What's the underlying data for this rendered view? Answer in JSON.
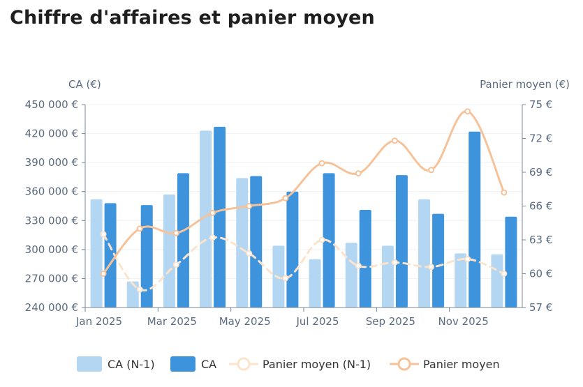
{
  "chart_data": {
    "type": "bar",
    "title": "Chiffre d'affaires et panier moyen",
    "ylabel": "CA (€)",
    "y2label": "Panier moyen (€)",
    "ylim": [
      240000,
      450000
    ],
    "y2lim": [
      57,
      75
    ],
    "y_ticks": [
      "240 000 €",
      "270 000 €",
      "300 000 €",
      "330 000 €",
      "360 000 €",
      "390 000 €",
      "420 000 €",
      "450 000 €"
    ],
    "y2_ticks": [
      "57 €",
      "60 €",
      "63 €",
      "66 €",
      "69 €",
      "72 €",
      "75 €"
    ],
    "x_tick_labels": [
      {
        "index": 0,
        "label": "Jan 2025"
      },
      {
        "index": 2,
        "label": "Mar 2025"
      },
      {
        "index": 4,
        "label": "May 2025"
      },
      {
        "index": 6,
        "label": "Jul 2025"
      },
      {
        "index": 8,
        "label": "Sep 2025"
      },
      {
        "index": 10,
        "label": "Nov 2025"
      }
    ],
    "categories": [
      "Jan 2025",
      "Feb 2025",
      "Mar 2025",
      "Apr 2025",
      "May 2025",
      "Jun 2025",
      "Jul 2025",
      "Aug 2025",
      "Sep 2025",
      "Oct 2025",
      "Nov 2025",
      "Dec 2025"
    ],
    "series": [
      {
        "name": "CA (N-1)",
        "kind": "bar",
        "axis": "left",
        "color": "#b3d6f2",
        "values": [
          352000,
          267000,
          357000,
          423000,
          374000,
          304000,
          290000,
          307000,
          304000,
          352000,
          296000,
          295000
        ]
      },
      {
        "name": "CA",
        "kind": "bar",
        "axis": "left",
        "color": "#3d94dd",
        "values": [
          348000,
          346000,
          379000,
          427000,
          376000,
          360000,
          379000,
          341000,
          377000,
          337000,
          422000,
          334000
        ]
      },
      {
        "name": "Panier moyen (N-1)",
        "kind": "line",
        "axis": "right",
        "color": "#fce3cc",
        "dashed": true,
        "values": [
          63.5,
          58.6,
          60.8,
          63.2,
          61.8,
          59.6,
          63.0,
          60.7,
          61.0,
          60.6,
          61.3,
          60.0
        ]
      },
      {
        "name": "Panier moyen",
        "kind": "line",
        "axis": "right",
        "color": "#f6c29a",
        "dashed": false,
        "values": [
          60.0,
          64.0,
          63.6,
          65.4,
          66.0,
          66.7,
          69.8,
          68.9,
          71.8,
          69.2,
          74.4,
          67.2
        ]
      }
    ],
    "legend": "bottom",
    "grid": true
  }
}
